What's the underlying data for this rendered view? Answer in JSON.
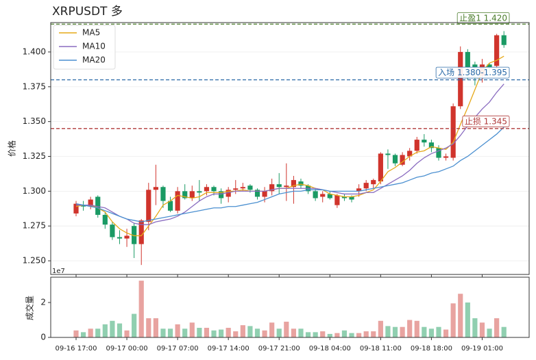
{
  "chart_data": {
    "type": "candlestick",
    "title": "XRPUSDT  多",
    "ylabel": "价格",
    "categories": [
      "09-16 17:00",
      null,
      null,
      null,
      null,
      null,
      null,
      "09-17 00:00",
      null,
      null,
      null,
      null,
      null,
      null,
      "09-17 07:00",
      null,
      null,
      null,
      null,
      null,
      null,
      "09-17 14:00",
      null,
      null,
      null,
      null,
      null,
      null,
      "09-17 21:00",
      null,
      null,
      null,
      null,
      null,
      null,
      "09-18 04:00",
      null,
      null,
      null,
      null,
      null,
      null,
      "09-18 11:00",
      null,
      null,
      null,
      null,
      null,
      null,
      "09-18 18:00",
      null,
      null,
      null,
      null,
      null,
      null,
      "09-19 01:00",
      null,
      null,
      null
    ],
    "open": [
      1.284,
      1.29,
      1.289,
      1.296,
      1.283,
      1.276,
      1.267,
      1.266,
      1.275,
      1.262,
      1.278,
      1.301,
      1.303,
      1.293,
      1.286,
      1.3,
      1.295,
      1.3,
      1.3,
      1.303,
      1.3,
      1.296,
      1.301,
      1.302,
      1.304,
      1.301,
      1.296,
      1.3,
      1.305,
      1.303,
      1.303,
      1.307,
      1.304,
      1.3,
      1.296,
      1.298,
      1.29,
      1.296,
      1.296,
      1.3,
      1.302,
      1.305,
      1.307,
      1.327,
      1.326,
      1.319,
      1.325,
      1.329,
      1.337,
      1.335,
      1.331,
      1.324,
      1.324,
      1.361,
      1.4,
      1.391,
      1.383,
      1.391,
      1.39,
      1.412
    ],
    "high": [
      1.293,
      1.293,
      1.296,
      1.297,
      1.285,
      1.278,
      1.272,
      1.273,
      1.277,
      1.28,
      1.306,
      1.319,
      1.304,
      1.296,
      1.303,
      1.305,
      1.304,
      1.308,
      1.305,
      1.304,
      1.302,
      1.303,
      1.308,
      1.306,
      1.305,
      1.302,
      1.303,
      1.309,
      1.313,
      1.32,
      1.311,
      1.309,
      1.305,
      1.302,
      1.3,
      1.3,
      1.298,
      1.298,
      1.297,
      1.305,
      1.308,
      1.309,
      1.328,
      1.33,
      1.327,
      1.328,
      1.331,
      1.339,
      1.341,
      1.337,
      1.333,
      1.327,
      1.363,
      1.404,
      1.402,
      1.393,
      1.395,
      1.392,
      1.413,
      1.415
    ],
    "low": [
      1.282,
      1.286,
      1.287,
      1.281,
      1.273,
      1.265,
      1.262,
      1.26,
      1.252,
      1.247,
      1.272,
      1.29,
      1.288,
      1.285,
      1.284,
      1.294,
      1.293,
      1.293,
      1.297,
      1.297,
      1.291,
      1.292,
      1.298,
      1.3,
      1.299,
      1.294,
      1.292,
      1.297,
      1.298,
      1.293,
      1.291,
      1.302,
      1.298,
      1.293,
      1.292,
      1.294,
      1.288,
      1.293,
      1.292,
      1.296,
      1.3,
      1.302,
      1.305,
      1.316,
      1.318,
      1.318,
      1.322,
      1.327,
      1.332,
      1.328,
      1.322,
      1.322,
      1.322,
      1.359,
      1.38,
      1.376,
      1.378,
      1.385,
      1.388,
      1.403
    ],
    "close": [
      1.291,
      1.289,
      1.294,
      1.283,
      1.276,
      1.267,
      1.266,
      1.268,
      1.262,
      1.279,
      1.301,
      1.303,
      1.293,
      1.286,
      1.3,
      1.295,
      1.3,
      1.299,
      1.303,
      1.3,
      1.295,
      1.301,
      1.302,
      1.303,
      1.301,
      1.296,
      1.3,
      1.305,
      1.303,
      1.304,
      1.308,
      1.304,
      1.3,
      1.295,
      1.298,
      1.295,
      1.297,
      1.295,
      1.294,
      1.302,
      1.306,
      1.308,
      1.327,
      1.326,
      1.32,
      1.326,
      1.329,
      1.337,
      1.335,
      1.331,
      1.324,
      1.325,
      1.361,
      1.4,
      1.389,
      1.389,
      1.391,
      1.389,
      1.412,
      1.405
    ],
    "up_color": "#d0342c",
    "down_color": "#1a9a64",
    "ylim": [
      1.2402,
      1.4211
    ],
    "yticks": [
      {
        "value": 1.25,
        "label": "1.250"
      },
      {
        "value": 1.275,
        "label": "1.275"
      },
      {
        "value": 1.3,
        "label": "1.300"
      },
      {
        "value": 1.325,
        "label": "1.325"
      },
      {
        "value": 1.35,
        "label": "1.350"
      },
      {
        "value": 1.375,
        "label": "1.375"
      },
      {
        "value": 1.4,
        "label": "1.400"
      }
    ],
    "grid": true,
    "legend": "upper left",
    "series": [
      {
        "name": "MA5",
        "color": "#e6a817",
        "values": [
          1.289,
          1.29,
          1.29,
          1.288,
          1.285,
          1.278,
          1.273,
          1.27,
          1.268,
          1.268,
          1.275,
          1.282,
          1.29,
          1.293,
          1.297,
          1.296,
          1.295,
          1.296,
          1.299,
          1.299,
          1.299,
          1.3,
          1.3,
          1.301,
          1.3,
          1.3,
          1.3,
          1.301,
          1.302,
          1.302,
          1.304,
          1.305,
          1.304,
          1.302,
          1.301,
          1.298,
          1.297,
          1.296,
          1.296,
          1.297,
          1.299,
          1.301,
          1.307,
          1.314,
          1.317,
          1.321,
          1.325,
          1.328,
          1.329,
          1.332,
          1.331,
          1.33,
          1.335,
          1.348,
          1.36,
          1.373,
          1.386,
          1.392,
          1.394,
          1.397
        ]
      },
      {
        "name": "MA10",
        "color": "#8a6cc0",
        "values": [
          1.29,
          1.29,
          1.29,
          1.289,
          1.288,
          1.285,
          1.282,
          1.28,
          1.277,
          1.276,
          1.276,
          1.278,
          1.279,
          1.28,
          1.282,
          1.285,
          1.289,
          1.293,
          1.296,
          1.298,
          1.298,
          1.299,
          1.3,
          1.3,
          1.3,
          1.3,
          1.3,
          1.301,
          1.302,
          1.302,
          1.302,
          1.302,
          1.302,
          1.302,
          1.301,
          1.3,
          1.299,
          1.298,
          1.298,
          1.298,
          1.299,
          1.299,
          1.302,
          1.305,
          1.308,
          1.311,
          1.315,
          1.32,
          1.324,
          1.327,
          1.329,
          1.331,
          1.334,
          1.34,
          1.347,
          1.353,
          1.359,
          1.364,
          1.371,
          1.377
        ]
      },
      {
        "name": "MA20",
        "color": "#4a8fd0",
        "values": [
          1.291,
          1.29,
          1.289,
          1.288,
          1.286,
          1.284,
          1.282,
          1.28,
          1.279,
          1.278,
          1.279,
          1.28,
          1.281,
          1.282,
          1.283,
          1.284,
          1.285,
          1.286,
          1.287,
          1.288,
          1.288,
          1.289,
          1.289,
          1.29,
          1.291,
          1.292,
          1.294,
          1.296,
          1.298,
          1.299,
          1.3,
          1.3,
          1.301,
          1.301,
          1.301,
          1.3,
          1.3,
          1.3,
          1.3,
          1.3,
          1.301,
          1.302,
          1.303,
          1.304,
          1.305,
          1.306,
          1.308,
          1.31,
          1.311,
          1.313,
          1.314,
          1.316,
          1.318,
          1.322,
          1.325,
          1.329,
          1.333,
          1.337,
          1.341,
          1.346
        ]
      }
    ],
    "levels": [
      {
        "label": "止盈1 1.420",
        "value": 1.42,
        "color": "#4a7c2a"
      },
      {
        "label": "入场 1.380-1.395",
        "value": 1.38,
        "color": "#2a6aa8"
      },
      {
        "label": "止损 1.345",
        "value": 1.345,
        "color": "#b03a3a"
      }
    ],
    "volume": {
      "ylabel": "成交量",
      "offset_label": "1e7",
      "values": [
        0.4,
        0.3,
        0.5,
        0.5,
        0.75,
        0.95,
        0.8,
        0.4,
        1.35,
        3.25,
        1.1,
        1.1,
        0.5,
        0.5,
        0.75,
        0.5,
        0.85,
        0.55,
        0.55,
        0.4,
        0.45,
        0.55,
        0.35,
        0.7,
        0.65,
        0.5,
        0.4,
        0.85,
        0.5,
        0.9,
        0.5,
        0.5,
        0.3,
        0.3,
        0.35,
        0.2,
        0.25,
        0.4,
        0.25,
        0.25,
        0.35,
        0.35,
        0.95,
        0.65,
        0.6,
        0.6,
        1.0,
        0.95,
        0.6,
        0.5,
        0.6,
        0.45,
        1.95,
        2.5,
        2.0,
        1.1,
        0.85,
        0.5,
        1.1,
        0.6
      ],
      "up_color": "#e8a3a0",
      "down_color": "#90cfb0",
      "ylim": [
        0,
        3.45
      ],
      "yticks": [
        0,
        2
      ]
    }
  }
}
